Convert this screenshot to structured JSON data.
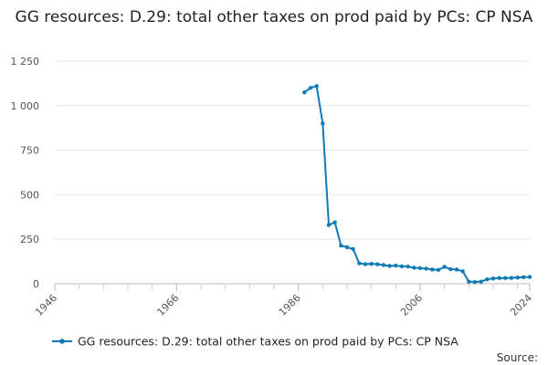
{
  "chart_data": {
    "type": "line",
    "title": "GG resources: D.29: total other taxes on prod paid by PCs: CP NSA",
    "xlabel": "",
    "ylabel": "",
    "xlim": [
      1946,
      2024
    ],
    "ylim": [
      0,
      1250
    ],
    "x_ticks": [
      1946,
      1966,
      1986,
      2006,
      2024
    ],
    "y_ticks": [
      0,
      250,
      500,
      750,
      1000,
      1250
    ],
    "y_tick_labels": [
      "0",
      "250",
      "500",
      "750",
      "1 000",
      "1 250"
    ],
    "x_tick_labels": [
      "1946",
      "1966",
      "1986",
      "2006",
      "2024"
    ],
    "grid": "horizontal",
    "legend_position": "bottom",
    "series": [
      {
        "name": "GG resources: D.29: total other taxes on prod paid by PCs: CP NSA",
        "color": "#0f7ab8",
        "x": [
          1987,
          1988,
          1989,
          1990,
          1991,
          1992,
          1993,
          1994,
          1995,
          1996,
          1997,
          1998,
          1999,
          2000,
          2001,
          2002,
          2003,
          2004,
          2005,
          2006,
          2007,
          2008,
          2009,
          2010,
          2011,
          2012,
          2013,
          2014,
          2015,
          2016,
          2017,
          2018,
          2019,
          2020,
          2021,
          2022,
          2023,
          2024
        ],
        "values": [
          1075,
          1100,
          1110,
          900,
          330,
          345,
          215,
          205,
          195,
          115,
          110,
          112,
          110,
          105,
          100,
          102,
          98,
          97,
          90,
          88,
          85,
          80,
          78,
          95,
          82,
          80,
          70,
          12,
          10,
          12,
          25,
          30,
          32,
          32,
          33,
          35,
          37,
          38
        ]
      }
    ]
  },
  "source_label": "Source:"
}
